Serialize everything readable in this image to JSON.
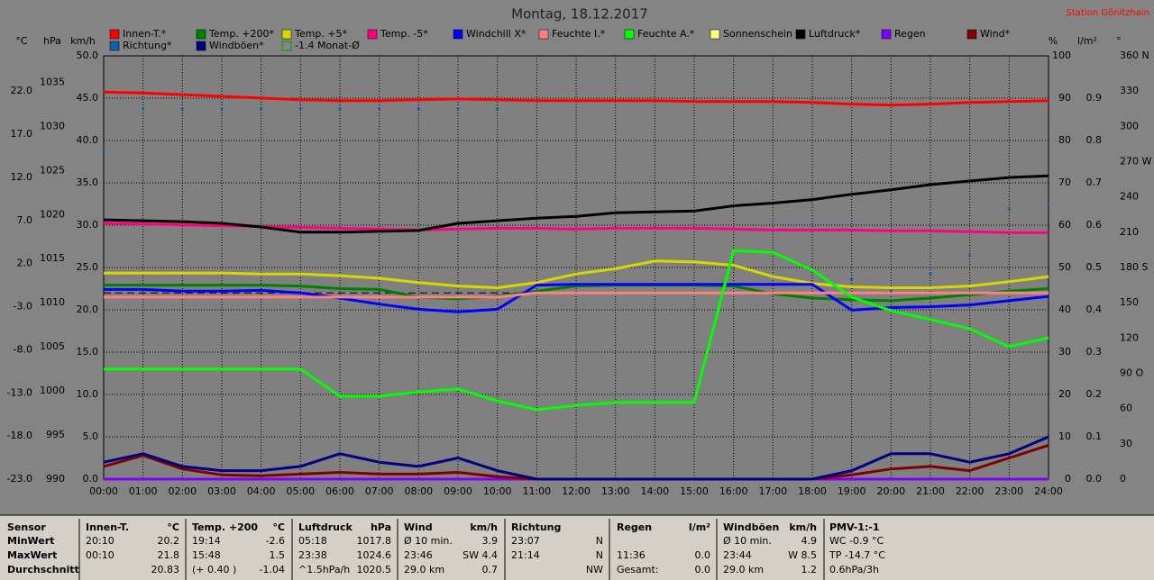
{
  "chart_data": {
    "type": "line",
    "title": "Montag, 18.12.2017",
    "station": "Station Gönitzhain",
    "categories": [
      "00:00",
      "01:00",
      "02:00",
      "03:00",
      "04:00",
      "05:00",
      "06:00",
      "07:00",
      "08:00",
      "09:00",
      "10:00",
      "11:00",
      "12:00",
      "13:00",
      "14:00",
      "15:00",
      "16:00",
      "17:00",
      "18:00",
      "19:00",
      "20:00",
      "21:00",
      "22:00",
      "23:00",
      "24:00"
    ],
    "grid": true,
    "axes": [
      {
        "unit": "°C",
        "side": "left",
        "lim": [
          -23,
          26.1
        ],
        "ticks": [
          {
            "value": 22,
            "label": "22.0"
          },
          {
            "value": 17,
            "label": "17.0"
          },
          {
            "value": 12,
            "label": "12.0"
          },
          {
            "value": 7,
            "label": "7.0"
          },
          {
            "value": 2,
            "label": "2.0"
          },
          {
            "value": -3,
            "label": "-3.0"
          },
          {
            "value": -8,
            "label": "-8.0"
          },
          {
            "value": -13,
            "label": "-13.0"
          },
          {
            "value": -18,
            "label": "-18.0"
          },
          {
            "value": -23,
            "label": "-23.0"
          }
        ]
      },
      {
        "unit": "hPa",
        "side": "left",
        "lim": [
          990,
          1038
        ],
        "ticks": [
          1035,
          1030,
          1025,
          1020,
          1015,
          1010,
          1005,
          1000,
          995,
          990
        ]
      },
      {
        "unit": "km/h",
        "side": "left",
        "lim": [
          0,
          50
        ],
        "ticks": [
          {
            "value": 50,
            "label": "50.0"
          },
          {
            "value": 45,
            "label": "45.0"
          },
          {
            "value": 40,
            "label": "40.0"
          },
          {
            "value": 35,
            "label": "35.0"
          },
          {
            "value": 30,
            "label": "30.0"
          },
          {
            "value": 25,
            "label": "25.0"
          },
          {
            "value": 20,
            "label": "20.0"
          },
          {
            "value": 15,
            "label": "15.0"
          },
          {
            "value": 10,
            "label": "10.0"
          },
          {
            "value": 5,
            "label": "5.0"
          },
          {
            "value": 0,
            "label": "0.0"
          }
        ],
        "grid": true
      },
      {
        "unit": "%",
        "side": "right",
        "lim": [
          0,
          100
        ],
        "ticks": [
          100,
          90,
          80,
          70,
          60,
          50,
          40,
          30,
          20,
          10,
          0
        ]
      },
      {
        "unit": "l/m²",
        "side": "right",
        "lim": [
          0,
          1
        ],
        "ticks": [
          {
            "value": 0.9,
            "label": "0.9"
          },
          {
            "value": 0.8,
            "label": "0.8"
          },
          {
            "value": 0.7,
            "label": "0.7"
          },
          {
            "value": 0.6,
            "label": "0.6"
          },
          {
            "value": 0.5,
            "label": "0.5"
          },
          {
            "value": 0.4,
            "label": "0.4"
          },
          {
            "value": 0.3,
            "label": "0.3"
          },
          {
            "value": 0.2,
            "label": "0.2"
          },
          {
            "value": 0.1,
            "label": "0.1"
          },
          {
            "value": 0,
            "label": "0.0"
          }
        ]
      },
      {
        "unit": "°",
        "side": "right",
        "lim": [
          0,
          360
        ],
        "ticks": [
          {
            "value": 360,
            "label": "360 N"
          },
          330,
          300,
          {
            "value": 270,
            "label": "270 W"
          },
          240,
          210,
          {
            "value": 180,
            "label": "180 S"
          },
          150,
          120,
          {
            "value": 90,
            "label": "90 O"
          },
          60,
          30,
          0
        ]
      }
    ],
    "series": [
      {
        "name": "Innen-T.*",
        "color": "#ff0000",
        "axis": "°C",
        "values": [
          21.9,
          21.8,
          21.6,
          21.4,
          21.2,
          21.0,
          20.9,
          20.9,
          21.0,
          21.1,
          21.0,
          20.9,
          20.9,
          20.9,
          20.9,
          20.8,
          20.8,
          20.8,
          20.7,
          20.5,
          20.4,
          20.5,
          20.7,
          20.8,
          20.9
        ]
      },
      {
        "name": "Temp. +200*",
        "color": "#008000",
        "axis": "°C",
        "values": [
          -0.5,
          -0.5,
          -0.5,
          -0.5,
          -0.5,
          -0.6,
          -0.9,
          -1.0,
          -1.9,
          -2.1,
          -1.8,
          -1.2,
          -0.6,
          -0.5,
          -0.5,
          -0.5,
          -0.6,
          -1.5,
          -2.0,
          -2.2,
          -2.3,
          -2.0,
          -1.6,
          -1.2,
          -0.9
        ]
      },
      {
        "name": "Temp. +5*",
        "color": "#d8d800",
        "axis": "°C",
        "values": [
          0.9,
          0.9,
          0.9,
          0.9,
          0.8,
          0.8,
          0.6,
          0.3,
          -0.2,
          -0.6,
          -0.8,
          -0.2,
          0.8,
          1.4,
          2.3,
          2.2,
          1.8,
          0.5,
          -0.3,
          -0.7,
          -0.8,
          -0.8,
          -0.6,
          -0.1,
          0.5
        ]
      },
      {
        "name": "Temp. -5*",
        "color": "#ff0080",
        "axis": "°C",
        "values": [
          6.7,
          6.6,
          6.5,
          6.4,
          6.3,
          6.2,
          6.1,
          6.0,
          5.9,
          6.0,
          6.1,
          6.1,
          6.0,
          6.1,
          6.1,
          6.1,
          6.0,
          5.9,
          5.9,
          5.9,
          5.8,
          5.8,
          5.7,
          5.6,
          5.6
        ]
      },
      {
        "name": "Windchill X*",
        "color": "#0000ff",
        "axis": "°C",
        "values": [
          -1.0,
          -1.0,
          -1.2,
          -1.2,
          -1.1,
          -1.4,
          -2.0,
          -2.7,
          -3.3,
          -3.6,
          -3.3,
          -0.5,
          -0.4,
          -0.4,
          -0.4,
          -0.4,
          -0.4,
          -0.4,
          -0.4,
          -3.4,
          -3.1,
          -3.0,
          -2.8,
          -2.3,
          -1.8
        ]
      },
      {
        "name": "Feuchte I.*",
        "color": "#ff8080",
        "axis": "%",
        "values": [
          43,
          43,
          43,
          43,
          43,
          43,
          43,
          43,
          43,
          43,
          43,
          44,
          44,
          44,
          44,
          44,
          44,
          44,
          44,
          44,
          44,
          44,
          44,
          44,
          44
        ]
      },
      {
        "name": "Feuchte A.*",
        "color": "#00ff00",
        "axis": "%",
        "values": [
          26,
          26,
          26,
          26,
          26,
          26,
          19.6,
          19.6,
          20.6,
          21.3,
          18.5,
          16.4,
          17.4,
          18.1,
          18.1,
          18.1,
          54,
          53.6,
          49.4,
          43,
          39.8,
          37.7,
          35.5,
          31.3,
          33.4
        ]
      },
      {
        "name": "Sonnenschein",
        "color": "#ffff80",
        "axis": "%",
        "values": [
          0,
          0,
          0,
          0,
          0,
          0,
          0,
          0,
          0,
          0,
          0,
          0,
          0,
          0,
          0,
          0,
          0,
          0,
          0,
          0,
          0,
          0,
          0,
          0,
          0
        ]
      },
      {
        "name": "Luftdruck*",
        "color": "#000000",
        "axis": "hPa",
        "values": [
          1019.4,
          1019.3,
          1019.2,
          1019.0,
          1018.6,
          1018.0,
          1018.0,
          1018.1,
          1018.2,
          1019.0,
          1019.3,
          1019.6,
          1019.8,
          1020.2,
          1020.3,
          1020.4,
          1021.0,
          1021.3,
          1021.7,
          1022.3,
          1022.8,
          1023.4,
          1023.8,
          1024.2,
          1024.4
        ]
      },
      {
        "name": "Regen",
        "color": "#8000ff",
        "axis": "l/m²",
        "values": [
          0,
          0,
          0,
          0,
          0,
          0,
          0,
          0,
          0,
          0,
          0,
          0,
          0,
          0,
          0,
          0,
          0,
          0,
          0,
          0,
          0,
          0,
          0,
          0,
          0
        ]
      },
      {
        "name": "Wind*",
        "color": "#800000",
        "axis": "km/h",
        "values": [
          1.5,
          2.8,
          1.2,
          0.5,
          0.4,
          0.6,
          0.8,
          0.6,
          0.6,
          0.8,
          0.3,
          0,
          0,
          0,
          0,
          0,
          0,
          0,
          0,
          0.5,
          1.2,
          1.5,
          1.0,
          2.5,
          4.0
        ]
      },
      {
        "name": "Richtung*",
        "color": "#1060b0",
        "axis": "°",
        "style": "dots",
        "values": [
          280,
          315,
          315,
          315,
          315,
          315,
          315,
          315,
          315,
          315,
          315,
          null,
          null,
          null,
          null,
          null,
          null,
          null,
          null,
          170,
          160,
          175,
          190,
          230,
          235
        ]
      },
      {
        "name": "Windböen*",
        "color": "#000080",
        "axis": "km/h",
        "values": [
          2,
          3,
          1.5,
          1,
          1,
          1.5,
          3,
          2,
          1.5,
          2.5,
          1,
          0,
          0,
          0,
          0,
          0,
          0,
          0,
          0,
          1,
          3,
          3,
          2,
          3,
          5
        ]
      }
    ],
    "monthly_average": {
      "label": "-1.4 Monat-Ø",
      "value": -1.4,
      "axis": "°C",
      "color": "#00a000"
    }
  },
  "table": {
    "rows": [
      [
        "Sensor",
        "Innen-T.",
        "°C",
        "Temp. +200",
        "°C",
        "Luftdruck",
        "hPa",
        "Wind",
        "km/h",
        "Richtung",
        null,
        "Regen",
        "l/m²",
        "Windböen",
        "km/h",
        "PMV-1:-1"
      ],
      [
        "MinWert",
        "20:10",
        "20.2",
        "19:14",
        "-2.6",
        "05:18",
        "1017.8",
        "Ø 10 min.",
        "3.9",
        "23:07",
        "N",
        null,
        null,
        "Ø 10 min.",
        "4.9",
        "WC -0.9 °C"
      ],
      [
        "MaxWert",
        "00:10",
        "21.8",
        "15:48",
        "1.5",
        "23:38",
        "1024.6",
        "23:46",
        "SW 4.4",
        "21:14",
        "N",
        "11:36",
        "0.0",
        "23:44",
        "W 8.5",
        "TP -14.7 °C"
      ],
      [
        "Durchschnitt",
        null,
        "20.83",
        "(+ 0.40 )",
        "-1.04",
        "^1.5hPa/h",
        "1020.5",
        "29.0 km",
        "0.7",
        null,
        "NW",
        "Gesamt:",
        "0.0",
        "29.0 km",
        "1.2",
        "0.6hPa/3h"
      ]
    ]
  }
}
